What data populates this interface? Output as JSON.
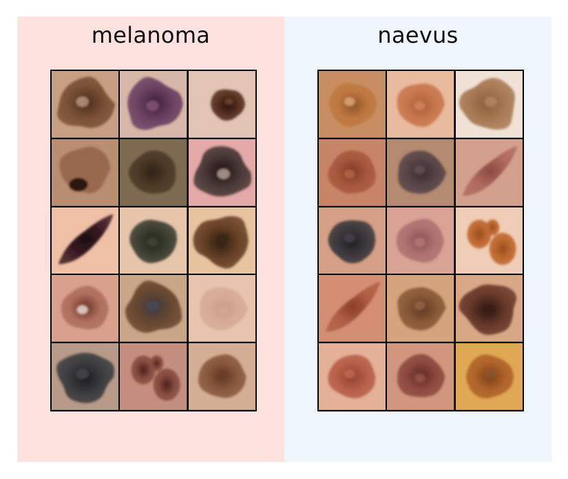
{
  "colors": {
    "melanoma_bg": "#fde2df",
    "naevus_bg": "#eff6fd",
    "grid_line": "#000000"
  },
  "panels": [
    {
      "title": "melanoma",
      "tiles": [
        {
          "skin": "#c7a083",
          "lesion": "#7b5236",
          "dark": "#4a2c1c",
          "shape": "blob",
          "spot": "#c7a18a"
        },
        {
          "skin": "#d7b8a8",
          "lesion": "#6e4364",
          "dark": "#3c2038",
          "shape": "blob",
          "spot": "#8e5a7a"
        },
        {
          "skin": "#e2c4b5",
          "lesion": "#5a3222",
          "dark": "#2a160f",
          "shape": "small",
          "spot": "#7a4a30"
        },
        {
          "skin": "#b98e72",
          "lesion": "#8a5a3e",
          "dark": "#3a1e16",
          "shape": "streak",
          "spot": "#2b1410"
        },
        {
          "skin": "#7e6a50",
          "lesion": "#4e3a26",
          "dark": "#2e2216",
          "shape": "round",
          "spot": "#3a2a1c"
        },
        {
          "skin": "#e4a9a8",
          "lesion": "#4b3a38",
          "dark": "#1e1414",
          "shape": "blob",
          "spot": "#c8b0a4"
        },
        {
          "skin": "#f0c0a6",
          "lesion": "#3a1a22",
          "dark": "#1e0e12",
          "shape": "diag",
          "spot": "#d2a274"
        },
        {
          "skin": "#e6c5ab",
          "lesion": "#3e4034",
          "dark": "#22241c",
          "shape": "round",
          "spot": "#4a4a3a"
        },
        {
          "skin": "#e8c39f",
          "lesion": "#6a4226",
          "dark": "#2e1e14",
          "shape": "blob",
          "spot": "#3a2818"
        },
        {
          "skin": "#d9a08e",
          "lesion": "#b0705e",
          "dark": "#6a3024",
          "shape": "round",
          "spot": "#f4ece6"
        },
        {
          "skin": "#c9a688",
          "lesion": "#6a4830",
          "dark": "#3e3a40",
          "shape": "blob",
          "spot": "#4a4a58"
        },
        {
          "skin": "#e8c4ae",
          "lesion": "#d8ac96",
          "dark": "#c69a86",
          "shape": "round",
          "spot": "#d8a892"
        },
        {
          "skin": "#b89a88",
          "lesion": "#3e3e40",
          "dark": "#1e1e20",
          "shape": "blob",
          "spot": "#4a4a50"
        },
        {
          "skin": "#c48e7e",
          "lesion": "#8a4e42",
          "dark": "#4e1e1e",
          "shape": "dots",
          "spot": "#5a2424"
        },
        {
          "skin": "#d4ae94",
          "lesion": "#8a5a3e",
          "dark": "#5e3622",
          "shape": "round",
          "spot": "#6e4028"
        }
      ]
    },
    {
      "title": "naevus",
      "tiles": [
        {
          "skin": "#c88e62",
          "lesion": "#c07840",
          "dark": "#8e5228",
          "shape": "round",
          "spot": "#e4b080"
        },
        {
          "skin": "#e8ba9e",
          "lesion": "#c8784e",
          "dark": "#a85e3a",
          "shape": "round",
          "spot": "#d88a5e"
        },
        {
          "skin": "#f0e2d6",
          "lesion": "#a87a54",
          "dark": "#8a5e3e",
          "shape": "blob",
          "spot": "#b88a64"
        },
        {
          "skin": "#c88466",
          "lesion": "#a8583e",
          "dark": "#7e3a28",
          "shape": "round",
          "spot": "#b86a4a"
        },
        {
          "skin": "#b48a70",
          "lesion": "#5a4648",
          "dark": "#3a2a30",
          "shape": "round",
          "spot": "#6a5658"
        },
        {
          "skin": "#d4a08e",
          "lesion": "#b06a5e",
          "dark": "#8a4a44",
          "shape": "diag",
          "spot": "#bc7468"
        },
        {
          "skin": "#d6a086",
          "lesion": "#3e3a3e",
          "dark": "#222024",
          "shape": "round",
          "spot": "#4a4650"
        },
        {
          "skin": "#d8a294",
          "lesion": "#b07272",
          "dark": "#8a4e54",
          "shape": "round",
          "spot": "#bc7c78"
        },
        {
          "skin": "#f0cdb6",
          "lesion": "#c06a32",
          "dark": "#9a4e1e",
          "shape": "dots",
          "spot": "#c87036"
        },
        {
          "skin": "#d48e74",
          "lesion": "#b05e44",
          "dark": "#8a3e2a",
          "shape": "diag",
          "spot": "#bc6a4e"
        },
        {
          "skin": "#d4a47e",
          "lesion": "#8a5a38",
          "dark": "#5e3a22",
          "shape": "round",
          "spot": "#9a6a44"
        },
        {
          "skin": "#d8a886",
          "lesion": "#6a3a2c",
          "dark": "#2a1612",
          "shape": "blob",
          "spot": "#3e2018"
        },
        {
          "skin": "#e4b098",
          "lesion": "#b8604a",
          "dark": "#8e4232",
          "shape": "round",
          "spot": "#c46e56"
        },
        {
          "skin": "#d0967e",
          "lesion": "#8e4a40",
          "dark": "#5e2a24",
          "shape": "round",
          "spot": "#9e5a4e"
        },
        {
          "skin": "#e0a854",
          "lesion": "#b0642a",
          "dark": "#7e3e1a",
          "shape": "round",
          "spot": "#8a5a34"
        }
      ]
    }
  ]
}
